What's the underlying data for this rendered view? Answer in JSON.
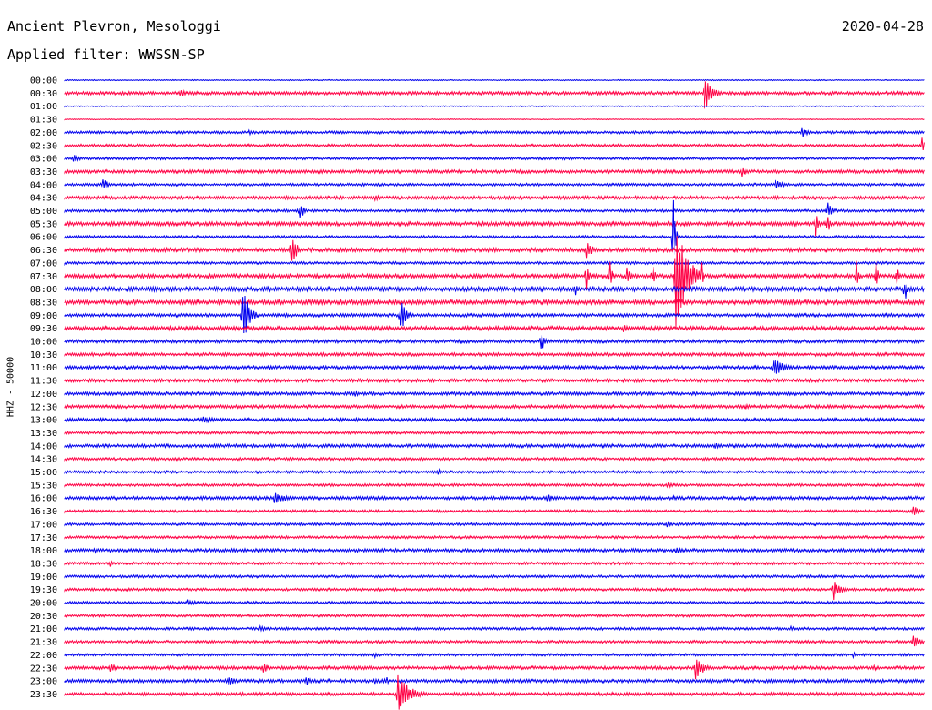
{
  "header": {
    "station": "Ancient Plevron, Mesologgi",
    "date": "2020-04-28",
    "filter": "Applied filter: WWSSN-SP"
  },
  "chart_data": {
    "type": "line",
    "ylabel": "HHZ - 50000",
    "colors": {
      "blue": "#0000ee",
      "red": "#ff0044"
    },
    "x_range_minutes": [
      0,
      30
    ],
    "rows": [
      "00:00",
      "00:30",
      "01:00",
      "01:30",
      "02:00",
      "02:30",
      "03:00",
      "03:30",
      "04:00",
      "04:30",
      "05:00",
      "05:30",
      "06:00",
      "06:30",
      "07:00",
      "07:30",
      "08:00",
      "08:30",
      "09:00",
      "09:30",
      "10:00",
      "10:30",
      "11:00",
      "11:30",
      "12:00",
      "12:30",
      "13:00",
      "13:30",
      "14:00",
      "14:30",
      "15:00",
      "15:30",
      "16:00",
      "16:30",
      "17:00",
      "17:30",
      "18:00",
      "18:30",
      "19:00",
      "19:30",
      "20:00",
      "20:30",
      "21:00",
      "21:30",
      "22:00",
      "22:30",
      "23:00",
      "23:30"
    ],
    "noise": [
      0.5,
      1.5,
      0.5,
      0.4,
      1.2,
      1.2,
      1.2,
      1.5,
      1.2,
      1.5,
      1.2,
      1.8,
      1.2,
      1.8,
      1.2,
      1.8,
      2.0,
      2.0,
      1.5,
      1.8,
      1.5,
      1.5,
      1.5,
      1.5,
      1.5,
      1.5,
      1.5,
      1.2,
      1.5,
      1.2,
      1.2,
      1.2,
      1.5,
      1.2,
      1.2,
      1.2,
      1.5,
      1.2,
      1.2,
      1.2,
      1.2,
      1.2,
      1.2,
      1.2,
      1.2,
      1.5,
      1.5,
      1.5
    ],
    "events": [
      {
        "row": 1,
        "minute": 4.0,
        "amp": 5,
        "duration": 0.6
      },
      {
        "row": 1,
        "minute": 22.3,
        "amp": 22,
        "duration": 0.7
      },
      {
        "row": 4,
        "minute": 6.4,
        "amp": 4,
        "duration": 0.6
      },
      {
        "row": 4,
        "minute": 25.7,
        "amp": 8,
        "duration": 0.5
      },
      {
        "row": 5,
        "minute": 29.9,
        "amp": 9,
        "duration": 0.3
      },
      {
        "row": 6,
        "minute": 0.3,
        "amp": 6,
        "duration": 0.6
      },
      {
        "row": 7,
        "minute": 23.6,
        "amp": 8,
        "duration": 0.5
      },
      {
        "row": 8,
        "minute": 1.3,
        "amp": 8,
        "duration": 0.6
      },
      {
        "row": 8,
        "minute": 24.8,
        "amp": 5,
        "duration": 0.8
      },
      {
        "row": 9,
        "minute": 10.8,
        "amp": 5,
        "duration": 0.5
      },
      {
        "row": 10,
        "minute": 8.2,
        "amp": 14,
        "duration": 0.3
      },
      {
        "row": 10,
        "minute": 26.6,
        "amp": 12,
        "duration": 0.4
      },
      {
        "row": 11,
        "minute": 26.2,
        "amp": 22,
        "duration": 0.2
      },
      {
        "row": 11,
        "minute": 26.6,
        "amp": 20,
        "duration": 0.2
      },
      {
        "row": 12,
        "minute": 21.2,
        "amp": 70,
        "duration": 0.2
      },
      {
        "row": 13,
        "minute": 7.9,
        "amp": 25,
        "duration": 0.4
      },
      {
        "row": 13,
        "minute": 18.2,
        "amp": 10,
        "duration": 0.6
      },
      {
        "row": 15,
        "minute": 18.2,
        "amp": 22,
        "duration": 0.2
      },
      {
        "row": 15,
        "minute": 19.0,
        "amp": 20,
        "duration": 0.2
      },
      {
        "row": 15,
        "minute": 19.6,
        "amp": 20,
        "duration": 0.2
      },
      {
        "row": 15,
        "minute": 20.5,
        "amp": 20,
        "duration": 0.2
      },
      {
        "row": 15,
        "minute": 21.3,
        "amp": 70,
        "duration": 1.0
      },
      {
        "row": 15,
        "minute": 22.2,
        "amp": 18,
        "duration": 0.2
      },
      {
        "row": 15,
        "minute": 27.6,
        "amp": 25,
        "duration": 0.2
      },
      {
        "row": 15,
        "minute": 28.3,
        "amp": 20,
        "duration": 0.2
      },
      {
        "row": 15,
        "minute": 29.0,
        "amp": 18,
        "duration": 0.2
      },
      {
        "row": 16,
        "minute": 17.8,
        "amp": 10,
        "duration": 0.2
      },
      {
        "row": 16,
        "minute": 29.3,
        "amp": 18,
        "duration": 0.2
      },
      {
        "row": 18,
        "minute": 6.2,
        "amp": 35,
        "duration": 0.6
      },
      {
        "row": 18,
        "minute": 11.7,
        "amp": 22,
        "duration": 0.5
      },
      {
        "row": 19,
        "minute": 19.5,
        "amp": 5,
        "duration": 0.6
      },
      {
        "row": 20,
        "minute": 16.6,
        "amp": 14,
        "duration": 0.4
      },
      {
        "row": 22,
        "minute": 12.3,
        "amp": 3,
        "duration": 0.6
      },
      {
        "row": 22,
        "minute": 24.7,
        "amp": 13,
        "duration": 1.0
      },
      {
        "row": 24,
        "minute": 10.1,
        "amp": 6,
        "duration": 0.3
      },
      {
        "row": 25,
        "minute": 23.7,
        "amp": 5,
        "duration": 0.4
      },
      {
        "row": 26,
        "minute": 2.1,
        "amp": 5,
        "duration": 0.3
      },
      {
        "row": 26,
        "minute": 4.8,
        "amp": 5,
        "duration": 1.2
      },
      {
        "row": 28,
        "minute": 22.7,
        "amp": 4,
        "duration": 0.6
      },
      {
        "row": 30,
        "minute": 13.0,
        "amp": 5,
        "duration": 0.3
      },
      {
        "row": 31,
        "minute": 21.0,
        "amp": 3,
        "duration": 1.0
      },
      {
        "row": 32,
        "minute": 7.3,
        "amp": 7,
        "duration": 1.2
      },
      {
        "row": 32,
        "minute": 16.8,
        "amp": 5,
        "duration": 0.8
      },
      {
        "row": 32,
        "minute": 21.2,
        "amp": 4,
        "duration": 0.4
      },
      {
        "row": 33,
        "minute": 29.6,
        "amp": 8,
        "duration": 0.5
      },
      {
        "row": 34,
        "minute": 21.0,
        "amp": 4,
        "duration": 0.5
      },
      {
        "row": 36,
        "minute": 1.0,
        "amp": 4,
        "duration": 0.4
      },
      {
        "row": 36,
        "minute": 21.3,
        "amp": 5,
        "duration": 0.7
      },
      {
        "row": 37,
        "minute": 1.6,
        "amp": 4,
        "duration": 0.2
      },
      {
        "row": 39,
        "minute": 26.8,
        "amp": 15,
        "duration": 0.6
      },
      {
        "row": 40,
        "minute": 4.3,
        "amp": 4,
        "duration": 0.8
      },
      {
        "row": 42,
        "minute": 6.8,
        "amp": 4,
        "duration": 0.6
      },
      {
        "row": 42,
        "minute": 25.3,
        "amp": 3,
        "duration": 0.6
      },
      {
        "row": 43,
        "minute": 29.6,
        "amp": 10,
        "duration": 0.6
      },
      {
        "row": 44,
        "minute": 10.8,
        "amp": 4,
        "duration": 0.3
      },
      {
        "row": 44,
        "minute": 27.5,
        "amp": 4,
        "duration": 0.3
      },
      {
        "row": 45,
        "minute": 1.6,
        "amp": 6,
        "duration": 0.6
      },
      {
        "row": 45,
        "minute": 6.9,
        "amp": 8,
        "duration": 0.5
      },
      {
        "row": 45,
        "minute": 22.0,
        "amp": 14,
        "duration": 0.7
      },
      {
        "row": 45,
        "minute": 28.2,
        "amp": 5,
        "duration": 0.4
      },
      {
        "row": 46,
        "minute": 5.7,
        "amp": 6,
        "duration": 0.7
      },
      {
        "row": 46,
        "minute": 8.4,
        "amp": 6,
        "duration": 0.5
      },
      {
        "row": 46,
        "minute": 10.8,
        "amp": 7,
        "duration": 0.2
      },
      {
        "row": 46,
        "minute": 11.2,
        "amp": 7,
        "duration": 0.2
      },
      {
        "row": 46,
        "minute": 29.3,
        "amp": 4,
        "duration": 0.3
      },
      {
        "row": 47,
        "minute": 11.6,
        "amp": 25,
        "duration": 1.1
      }
    ]
  }
}
